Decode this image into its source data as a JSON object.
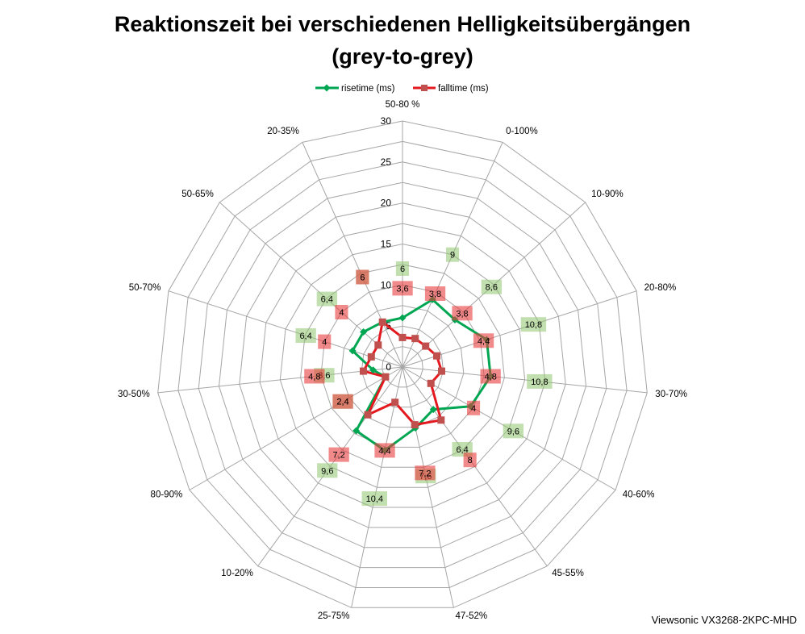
{
  "chart_data": {
    "type": "radar",
    "title_lines": [
      "Reaktionszeit bei verschiedenen Helligkeitsübergängen",
      "(grey-to-grey)"
    ],
    "categories": [
      "50-80 %",
      "0-100%",
      "10-90%",
      "20-80%",
      "30-70%",
      "40-60%",
      "45-55%",
      "47-52%",
      "25-75%",
      "10-20%",
      "80-90%",
      "30-50%",
      "50-70%",
      "50-65%",
      "20-35%"
    ],
    "series": [
      {
        "name": "risetime (ms)",
        "color": "#00a651",
        "marker": "diamond",
        "marker_color": "#00a651",
        "values": [
          6,
          9,
          8.6,
          10.8,
          10.8,
          9.6,
          6.4,
          7.6,
          10.4,
          9.6,
          2.4,
          3.6,
          6.4,
          6.4,
          6
        ],
        "labels": [
          "6",
          "9",
          "8,6",
          "10,8",
          "10,8",
          "9,6",
          "6,4",
          "7,6",
          "10,4",
          "9,6",
          "2,4",
          "3,6",
          "6,4",
          "6,4",
          "6"
        ]
      },
      {
        "name": "falltime (ms)",
        "color": "#e3191f",
        "marker": "square",
        "marker_color": "#c0504d",
        "values": [
          3.6,
          3.8,
          3.8,
          4.4,
          4.8,
          4,
          8,
          7.2,
          4.4,
          7.2,
          2.4,
          4.8,
          4,
          4,
          6
        ],
        "labels": [
          "3,6",
          "3,8",
          "3,8",
          "4,4",
          "4,8",
          "4",
          "8",
          "7,2",
          "4,4",
          "7,2",
          "2,4",
          "4,8",
          "4",
          "4",
          "6"
        ]
      }
    ],
    "r_range": [
      0,
      30
    ],
    "r_ticks": [
      0,
      5,
      10,
      15,
      20,
      25,
      30
    ],
    "gridlines": true,
    "legend_position": "top",
    "annotations": [
      "Viewsonic VX3268-2KPC-MHD"
    ]
  }
}
